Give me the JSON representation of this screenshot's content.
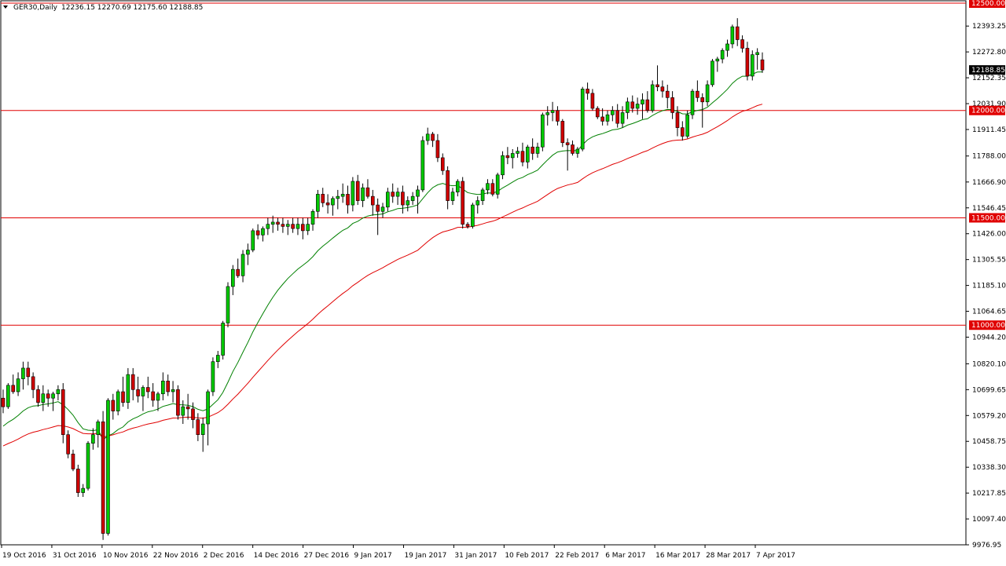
{
  "header": {
    "symbol_label": "GER30,Daily",
    "ohlc_label": "12236.15 12270.69 12175.60 12188.85"
  },
  "colors": {
    "background": "#ffffff",
    "up_candle": "#00c800",
    "down_candle": "#d00000",
    "wick": "#000000",
    "ma_fast": "#008000",
    "ma_slow": "#e00000",
    "level_line": "#e00000",
    "price_badge_bg": "#000000",
    "level_badge_bg": "#e00000"
  },
  "chart_data": {
    "type": "candlestick",
    "title": "GER30,Daily",
    "y_axis": {
      "side": "right",
      "range": [
        9976.95,
        12500.0
      ],
      "tick_labels": [
        "12393.25",
        "12272.80",
        "12152.35",
        "12031.90",
        "11911.45",
        "11788.00",
        "11666.90",
        "11546.45",
        "11426.00",
        "11305.55",
        "11185.10",
        "11064.65",
        "10944.20",
        "10820.10",
        "10699.65",
        "10579.20",
        "10458.75",
        "10338.30",
        "10217.85",
        "10097.40",
        "9976.95"
      ],
      "grid": false
    },
    "x_axis": {
      "tick_labels": [
        "19 Oct 2016",
        "31 Oct 2016",
        "10 Nov 2016",
        "22 Nov 2016",
        "2 Dec 2016",
        "14 Dec 2016",
        "27 Dec 2016",
        "9 Jan 2017",
        "19 Jan 2017",
        "31 Jan 2017",
        "10 Feb 2017",
        "22 Feb 2017",
        "6 Mar 2017",
        "16 Mar 2017",
        "28 Mar 2017",
        "7 Apr 2017"
      ]
    },
    "horizontal_levels": [
      {
        "value": 12000.0,
        "label": "12000.00"
      },
      {
        "value": 11500.0,
        "label": "11500.00"
      },
      {
        "value": 11000.0,
        "label": "11000.00"
      }
    ],
    "top_level": {
      "value": 12500.0,
      "label": "12500.00"
    },
    "current_price": {
      "value": 12188.85,
      "label": "12188.85"
    },
    "candles": [
      [
        10660,
        10700,
        10590,
        10620
      ],
      [
        10620,
        10730,
        10610,
        10720
      ],
      [
        10720,
        10770,
        10680,
        10690
      ],
      [
        10690,
        10780,
        10670,
        10750
      ],
      [
        10750,
        10830,
        10700,
        10800
      ],
      [
        10800,
        10830,
        10720,
        10760
      ],
      [
        10760,
        10780,
        10660,
        10700
      ],
      [
        10700,
        10720,
        10620,
        10640
      ],
      [
        10640,
        10720,
        10600,
        10680
      ],
      [
        10680,
        10700,
        10620,
        10660
      ],
      [
        10660,
        10690,
        10600,
        10680
      ],
      [
        10680,
        10720,
        10650,
        10700
      ],
      [
        10700,
        10730,
        10450,
        10490
      ],
      [
        10490,
        10510,
        10380,
        10400
      ],
      [
        10400,
        10420,
        10320,
        10330
      ],
      [
        10330,
        10350,
        10200,
        10220
      ],
      [
        10220,
        10260,
        10200,
        10240
      ],
      [
        10240,
        10460,
        10230,
        10450
      ],
      [
        10450,
        10520,
        10420,
        10490
      ],
      [
        10490,
        10560,
        10430,
        10550
      ],
      [
        10550,
        10600,
        10000,
        10030
      ],
      [
        10030,
        10660,
        10020,
        10650
      ],
      [
        10650,
        10680,
        10560,
        10600
      ],
      [
        10600,
        10700,
        10580,
        10690
      ],
      [
        10690,
        10760,
        10620,
        10640
      ],
      [
        10640,
        10800,
        10610,
        10770
      ],
      [
        10770,
        10800,
        10650,
        10700
      ],
      [
        10700,
        10760,
        10640,
        10670
      ],
      [
        10670,
        10720,
        10600,
        10710
      ],
      [
        10710,
        10760,
        10660,
        10690
      ],
      [
        10690,
        10730,
        10620,
        10650
      ],
      [
        10650,
        10690,
        10600,
        10680
      ],
      [
        10680,
        10780,
        10650,
        10740
      ],
      [
        10740,
        10770,
        10670,
        10690
      ],
      [
        10690,
        10740,
        10640,
        10700
      ],
      [
        10700,
        10720,
        10560,
        10580
      ],
      [
        10580,
        10650,
        10540,
        10620
      ],
      [
        10620,
        10680,
        10560,
        10610
      ],
      [
        10610,
        10640,
        10520,
        10560
      ],
      [
        10560,
        10590,
        10460,
        10490
      ],
      [
        10490,
        10570,
        10410,
        10540
      ],
      [
        10540,
        10700,
        10440,
        10690
      ],
      [
        10690,
        10850,
        10670,
        10830
      ],
      [
        10830,
        10880,
        10800,
        10860
      ],
      [
        10860,
        11020,
        10840,
        11010
      ],
      [
        11010,
        11200,
        10990,
        11180
      ],
      [
        11180,
        11280,
        11140,
        11260
      ],
      [
        11260,
        11310,
        11220,
        11230
      ],
      [
        11230,
        11350,
        11200,
        11330
      ],
      [
        11330,
        11380,
        11280,
        11350
      ],
      [
        11350,
        11450,
        11340,
        11440
      ],
      [
        11440,
        11470,
        11400,
        11420
      ],
      [
        11420,
        11460,
        11390,
        11450
      ],
      [
        11450,
        11500,
        11420,
        11470
      ],
      [
        11470,
        11510,
        11430,
        11480
      ],
      [
        11480,
        11500,
        11440,
        11470
      ],
      [
        11470,
        11500,
        11430,
        11460
      ],
      [
        11460,
        11490,
        11420,
        11470
      ],
      [
        11470,
        11500,
        11430,
        11450
      ],
      [
        11450,
        11500,
        11420,
        11470
      ],
      [
        11470,
        11500,
        11400,
        11440
      ],
      [
        11440,
        11500,
        11420,
        11470
      ],
      [
        11470,
        11540,
        11440,
        11530
      ],
      [
        11530,
        11630,
        11500,
        11610
      ],
      [
        11610,
        11640,
        11550,
        11570
      ],
      [
        11570,
        11610,
        11520,
        11560
      ],
      [
        11560,
        11600,
        11510,
        11590
      ],
      [
        11590,
        11630,
        11540,
        11600
      ],
      [
        11600,
        11660,
        11570,
        11610
      ],
      [
        11610,
        11650,
        11520,
        11560
      ],
      [
        11560,
        11690,
        11530,
        11670
      ],
      [
        11670,
        11700,
        11560,
        11580
      ],
      [
        11580,
        11660,
        11550,
        11640
      ],
      [
        11640,
        11680,
        11590,
        11600
      ],
      [
        11600,
        11630,
        11510,
        11560
      ],
      [
        11560,
        11590,
        11420,
        11530
      ],
      [
        11530,
        11570,
        11500,
        11550
      ],
      [
        11550,
        11640,
        11530,
        11620
      ],
      [
        11620,
        11660,
        11570,
        11600
      ],
      [
        11600,
        11640,
        11560,
        11620
      ],
      [
        11620,
        11650,
        11520,
        11560
      ],
      [
        11560,
        11600,
        11530,
        11580
      ],
      [
        11580,
        11620,
        11560,
        11600
      ],
      [
        11600,
        11650,
        11520,
        11630
      ],
      [
        11630,
        11880,
        11620,
        11860
      ],
      [
        11860,
        11920,
        11840,
        11890
      ],
      [
        11890,
        11900,
        11830,
        11860
      ],
      [
        11860,
        11890,
        11760,
        11780
      ],
      [
        11780,
        11800,
        11700,
        11720
      ],
      [
        11720,
        11740,
        11540,
        11580
      ],
      [
        11580,
        11640,
        11560,
        11620
      ],
      [
        11620,
        11680,
        11600,
        11670
      ],
      [
        11670,
        11690,
        11450,
        11470
      ],
      [
        11470,
        11480,
        11450,
        11460
      ],
      [
        11460,
        11570,
        11450,
        11560
      ],
      [
        11560,
        11600,
        11520,
        11580
      ],
      [
        11580,
        11640,
        11560,
        11630
      ],
      [
        11630,
        11680,
        11610,
        11660
      ],
      [
        11660,
        11680,
        11600,
        11610
      ],
      [
        11610,
        11710,
        11590,
        11700
      ],
      [
        11700,
        11810,
        11680,
        11790
      ],
      [
        11790,
        11830,
        11750,
        11780
      ],
      [
        11780,
        11820,
        11730,
        11800
      ],
      [
        11800,
        11830,
        11780,
        11810
      ],
      [
        11810,
        11850,
        11740,
        11760
      ],
      [
        11760,
        11840,
        11730,
        11830
      ],
      [
        11830,
        11870,
        11770,
        11800
      ],
      [
        11800,
        11850,
        11780,
        11830
      ],
      [
        11830,
        11990,
        11810,
        11980
      ],
      [
        11980,
        12020,
        11930,
        11990
      ],
      [
        11990,
        12040,
        11950,
        12000
      ],
      [
        12000,
        12020,
        11930,
        11950
      ],
      [
        11950,
        11960,
        11830,
        11850
      ],
      [
        11850,
        11870,
        11720,
        11840
      ],
      [
        11840,
        11860,
        11790,
        11800
      ],
      [
        11800,
        11830,
        11780,
        11820
      ],
      [
        11820,
        12110,
        11810,
        12100
      ],
      [
        12100,
        12130,
        12050,
        12080
      ],
      [
        12080,
        12100,
        12000,
        12010
      ],
      [
        12010,
        12020,
        11960,
        11970
      ],
      [
        11970,
        12010,
        11930,
        11950
      ],
      [
        11950,
        12000,
        11930,
        11980
      ],
      [
        11980,
        12020,
        11950,
        12000
      ],
      [
        12000,
        12030,
        11920,
        11940
      ],
      [
        11940,
        12020,
        11920,
        11990
      ],
      [
        11990,
        12060,
        11960,
        12040
      ],
      [
        12040,
        12070,
        11990,
        12010
      ],
      [
        12010,
        12060,
        11980,
        12030
      ],
      [
        12030,
        12080,
        11960,
        12050
      ],
      [
        12050,
        12090,
        11990,
        12000
      ],
      [
        12000,
        12140,
        11990,
        12120
      ],
      [
        12120,
        12210,
        12090,
        12110
      ],
      [
        12110,
        12140,
        12060,
        12090
      ],
      [
        12090,
        12120,
        12010,
        12060
      ],
      [
        12060,
        12090,
        11960,
        11990
      ],
      [
        11990,
        12020,
        11880,
        11920
      ],
      [
        11920,
        11950,
        11860,
        11880
      ],
      [
        11880,
        12000,
        11870,
        11980
      ],
      [
        11980,
        12100,
        11960,
        12090
      ],
      [
        12090,
        12140,
        12040,
        12060
      ],
      [
        12060,
        12080,
        11920,
        12040
      ],
      [
        12040,
        12140,
        12020,
        12120
      ],
      [
        12120,
        12240,
        12110,
        12230
      ],
      [
        12230,
        12250,
        12180,
        12240
      ],
      [
        12240,
        12290,
        12220,
        12280
      ],
      [
        12280,
        12330,
        12250,
        12310
      ],
      [
        12310,
        12400,
        12290,
        12390
      ],
      [
        12390,
        12430,
        12300,
        12330
      ],
      [
        12330,
        12350,
        12270,
        12290
      ],
      [
        12290,
        12320,
        12140,
        12160
      ],
      [
        12160,
        12280,
        12140,
        12260
      ],
      [
        12260,
        12290,
        12190,
        12270
      ],
      [
        12236.15,
        12270.69,
        12175.6,
        12188.85
      ]
    ]
  }
}
